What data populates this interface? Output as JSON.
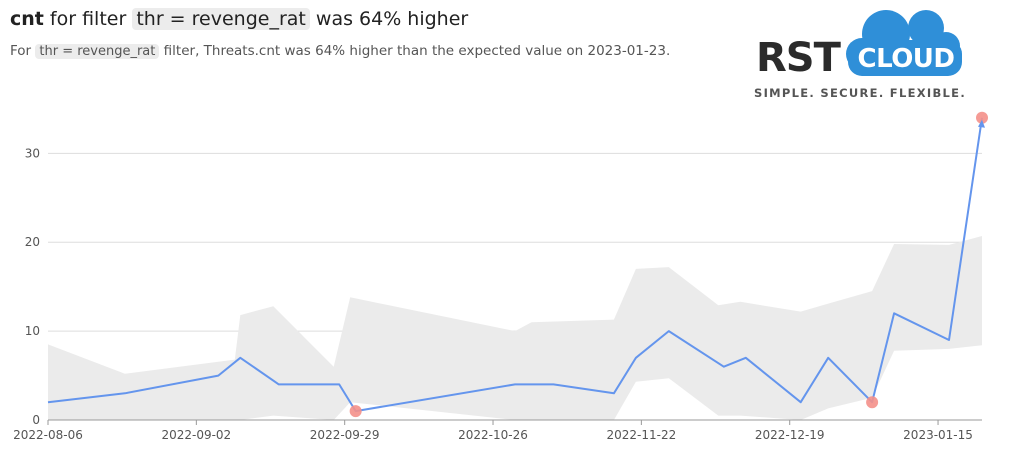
{
  "header": {
    "title_metric": "cnt",
    "title_mid": "for filter",
    "title_filter": "thr = revenge_rat",
    "title_end": "was 64% higher",
    "subtitle_pre": "For",
    "subtitle_filter": "thr = revenge_rat",
    "subtitle_post": "filter, Threats.cnt was 64% higher than the expected value on 2023-01-23."
  },
  "logo": {
    "rst": "RST",
    "cloud": "CLOUD",
    "tagline": "SIMPLE.  SECURE.  FLEXIBLE.",
    "cloud_color": "#2f8fd8"
  },
  "colors": {
    "line": "#6495ed",
    "band": "#ebebeb",
    "anomaly": "#f4908a",
    "grid": "#dddddd"
  },
  "chart_data": {
    "type": "line",
    "title": "",
    "xlabel": "",
    "ylabel": "",
    "x_ticks": [
      "2022-08-06",
      "2022-09-02",
      "2022-09-29",
      "2022-10-26",
      "2022-11-22",
      "2022-12-19",
      "2023-01-15"
    ],
    "x_range": [
      "2022-08-06",
      "2023-01-23"
    ],
    "y_ticks": [
      0,
      10,
      20,
      30
    ],
    "ylim": [
      0,
      36
    ],
    "grid": true,
    "series": [
      {
        "values": [
          [
            "2022-08-06",
            2
          ],
          [
            "2022-08-20",
            3
          ],
          [
            "2022-09-06",
            5
          ],
          [
            "2022-09-10",
            7
          ],
          [
            "2022-09-17",
            4
          ],
          [
            "2022-09-28",
            4
          ],
          [
            "2022-10-01",
            1
          ],
          [
            "2022-10-30",
            4
          ],
          [
            "2022-11-06",
            4
          ],
          [
            "2022-11-17",
            3
          ],
          [
            "2022-11-21",
            7
          ],
          [
            "2022-11-27",
            10
          ],
          [
            "2022-12-07",
            6
          ],
          [
            "2022-12-11",
            7
          ],
          [
            "2022-12-21",
            2
          ],
          [
            "2022-12-26",
            7
          ],
          [
            "2023-01-03",
            2
          ],
          [
            "2023-01-07",
            12
          ],
          [
            "2023-01-17",
            9
          ],
          [
            "2023-01-23",
            34
          ]
        ]
      }
    ],
    "expected_band": [
      [
        "2022-08-06",
        0,
        8.5
      ],
      [
        "2022-08-20",
        0,
        5.2
      ],
      [
        "2022-09-09",
        0,
        6.8
      ],
      [
        "2022-09-10",
        0,
        11.8
      ],
      [
        "2022-09-16",
        0.5,
        12.8
      ],
      [
        "2022-09-27",
        0,
        6
      ],
      [
        "2022-09-30",
        2,
        13.8
      ],
      [
        "2022-10-30",
        0,
        10
      ],
      [
        "2022-11-02",
        0,
        11
      ],
      [
        "2022-11-17",
        0,
        11.3
      ],
      [
        "2022-11-21",
        4.3,
        17
      ],
      [
        "2022-11-27",
        4.7,
        17.2
      ],
      [
        "2022-12-06",
        0.5,
        12.9
      ],
      [
        "2022-12-10",
        0.5,
        13.3
      ],
      [
        "2022-12-21",
        0,
        12.2
      ],
      [
        "2022-12-26",
        1.3,
        13.1
      ],
      [
        "2023-01-03",
        2.5,
        14.5
      ],
      [
        "2023-01-07",
        7.8,
        19.8
      ],
      [
        "2023-01-17",
        8,
        19.7
      ],
      [
        "2023-01-23",
        8.4,
        20.7
      ]
    ],
    "anomalies": [
      [
        "2022-10-01",
        1
      ],
      [
        "2023-01-03",
        2
      ],
      [
        "2023-01-23",
        34
      ]
    ]
  }
}
